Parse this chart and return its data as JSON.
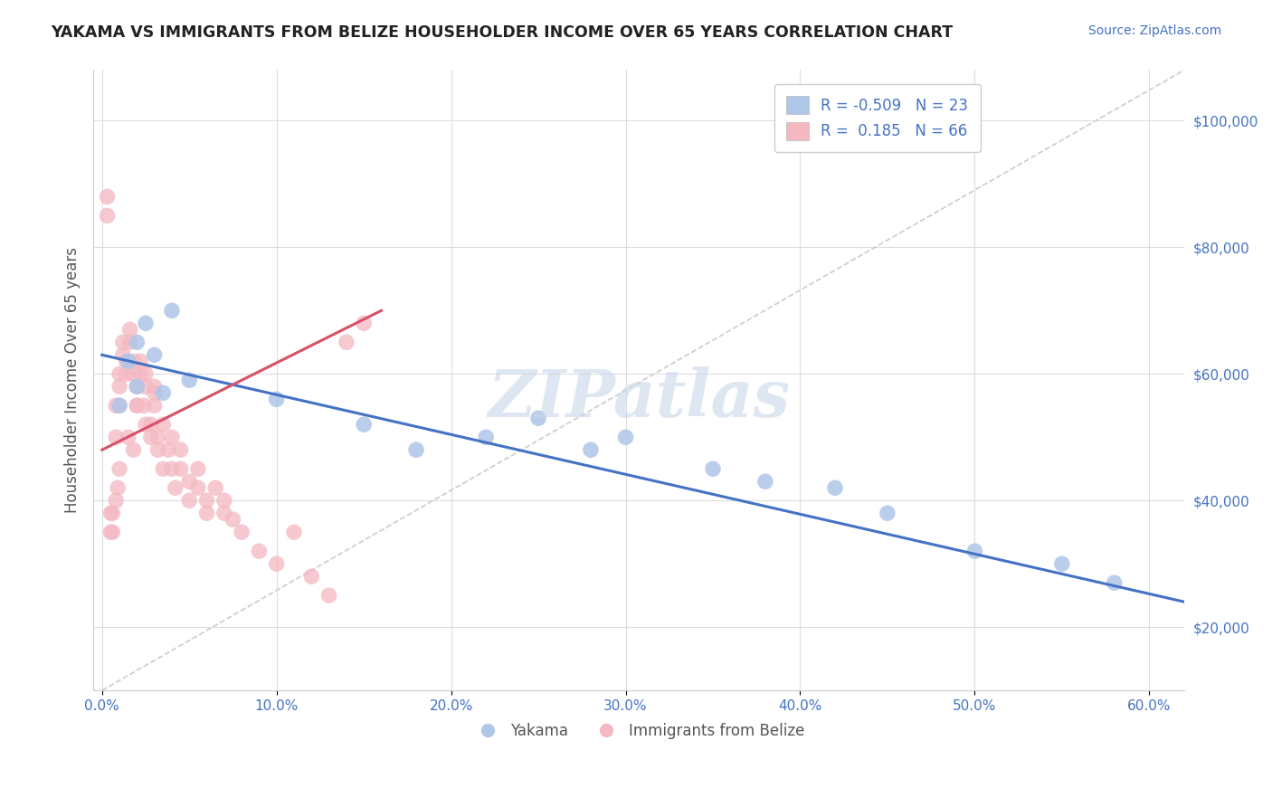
{
  "title": "YAKAMA VS IMMIGRANTS FROM BELIZE HOUSEHOLDER INCOME OVER 65 YEARS CORRELATION CHART",
  "source": "Source: ZipAtlas.com",
  "xlabel_ticks": [
    "0.0%",
    "10.0%",
    "20.0%",
    "30.0%",
    "40.0%",
    "50.0%",
    "60.0%"
  ],
  "ylabel_label": "Householder Income Over 65 years",
  "ylabel_values": [
    20000,
    40000,
    60000,
    80000,
    100000
  ],
  "xlim": [
    -0.005,
    0.62
  ],
  "ylim": [
    10000,
    108000
  ],
  "legend_entries": [
    {
      "label": "Yakama",
      "color": "#aec6e8",
      "R": "-0.509",
      "N": "23"
    },
    {
      "label": "Immigrants from Belize",
      "color": "#f4b8c1",
      "R": "0.185",
      "N": "66"
    }
  ],
  "blue_scatter_x": [
    0.01,
    0.015,
    0.02,
    0.025,
    0.03,
    0.035,
    0.04,
    0.1,
    0.15,
    0.18,
    0.22,
    0.25,
    0.28,
    0.3,
    0.35,
    0.38,
    0.42,
    0.45,
    0.5,
    0.55,
    0.58,
    0.02,
    0.05
  ],
  "blue_scatter_y": [
    55000,
    62000,
    65000,
    68000,
    63000,
    57000,
    70000,
    56000,
    52000,
    48000,
    50000,
    53000,
    48000,
    50000,
    45000,
    43000,
    42000,
    38000,
    32000,
    30000,
    27000,
    58000,
    59000
  ],
  "pink_scatter_x": [
    0.005,
    0.005,
    0.008,
    0.008,
    0.01,
    0.01,
    0.01,
    0.012,
    0.012,
    0.014,
    0.014,
    0.016,
    0.016,
    0.018,
    0.018,
    0.02,
    0.02,
    0.022,
    0.022,
    0.024,
    0.025,
    0.025,
    0.028,
    0.028,
    0.03,
    0.03,
    0.032,
    0.032,
    0.035,
    0.035,
    0.038,
    0.04,
    0.04,
    0.042,
    0.045,
    0.045,
    0.05,
    0.05,
    0.055,
    0.055,
    0.06,
    0.06,
    0.065,
    0.07,
    0.07,
    0.075,
    0.08,
    0.09,
    0.1,
    0.11,
    0.12,
    0.13,
    0.14,
    0.15,
    0.003,
    0.003,
    0.006,
    0.006,
    0.008,
    0.009,
    0.01,
    0.015,
    0.018,
    0.02,
    0.025,
    0.03
  ],
  "pink_scatter_y": [
    35000,
    38000,
    50000,
    55000,
    60000,
    58000,
    55000,
    63000,
    65000,
    60000,
    62000,
    65000,
    67000,
    62000,
    60000,
    58000,
    55000,
    60000,
    62000,
    55000,
    58000,
    60000,
    50000,
    52000,
    55000,
    57000,
    48000,
    50000,
    52000,
    45000,
    48000,
    45000,
    50000,
    42000,
    45000,
    48000,
    43000,
    40000,
    45000,
    42000,
    40000,
    38000,
    42000,
    38000,
    40000,
    37000,
    35000,
    32000,
    30000,
    35000,
    28000,
    25000,
    65000,
    68000,
    85000,
    88000,
    35000,
    38000,
    40000,
    42000,
    45000,
    50000,
    48000,
    55000,
    52000,
    58000
  ],
  "blue_line_x": [
    0.0,
    0.62
  ],
  "blue_line_y": [
    63000,
    24000
  ],
  "pink_line_x": [
    0.0,
    0.16
  ],
  "pink_line_y": [
    48000,
    70000
  ],
  "diag_line_x": [
    0.0,
    0.62
  ],
  "diag_line_y": [
    10000,
    108000
  ],
  "title_color": "#222222",
  "source_color": "#4472c4",
  "axis_label_color": "#555555",
  "tick_color": "#4472c4",
  "grid_color": "#dddddd",
  "blue_scatter_color": "#aec6e8",
  "pink_scatter_color": "#f4b8c1",
  "blue_line_color": "#4472c4",
  "pink_line_color": "#d9506a",
  "diag_line_color": "#cccccc",
  "watermark_text": "ZIPatlas",
  "watermark_color": "#c8d8e8"
}
